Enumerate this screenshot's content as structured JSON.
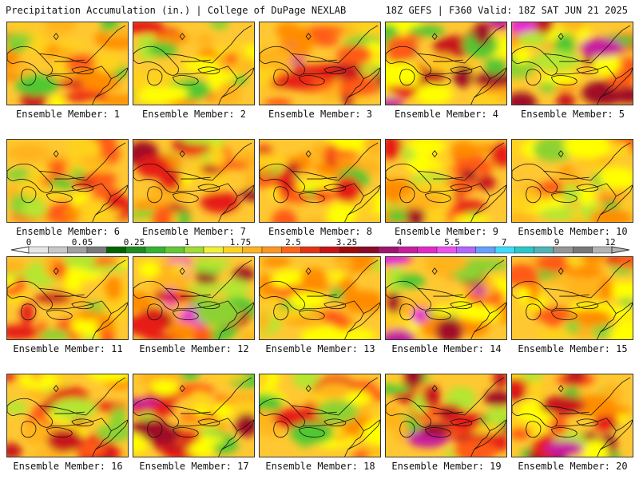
{
  "header": {
    "left_title": "Precipitation Accumulation (in.) | College of DuPage NEXLAB",
    "right_title": "18Z GEFS | F360 Valid: 18Z SAT JUN 21 2025"
  },
  "members": [
    {
      "label": "Ensemble Member: 1",
      "moisture": 0.45
    },
    {
      "label": "Ensemble Member: 2",
      "moisture": 0.4
    },
    {
      "label": "Ensemble Member: 3",
      "moisture": 0.6
    },
    {
      "label": "Ensemble Member: 4",
      "moisture": 0.65
    },
    {
      "label": "Ensemble Member: 5",
      "moisture": 0.7
    },
    {
      "label": "Ensemble Member: 6",
      "moisture": 0.4
    },
    {
      "label": "Ensemble Member: 7",
      "moisture": 0.55
    },
    {
      "label": "Ensemble Member: 8",
      "moisture": 0.45
    },
    {
      "label": "Ensemble Member: 9",
      "moisture": 0.55
    },
    {
      "label": "Ensemble Member: 10",
      "moisture": 0.4
    },
    {
      "label": "Ensemble Member: 11",
      "moisture": 0.45
    },
    {
      "label": "Ensemble Member: 12",
      "moisture": 0.75
    },
    {
      "label": "Ensemble Member: 13",
      "moisture": 0.35
    },
    {
      "label": "Ensemble Member: 14",
      "moisture": 0.75
    },
    {
      "label": "Ensemble Member: 15",
      "moisture": 0.4
    },
    {
      "label": "Ensemble Member: 16",
      "moisture": 0.45
    },
    {
      "label": "Ensemble Member: 17",
      "moisture": 0.6
    },
    {
      "label": "Ensemble Member: 18",
      "moisture": 0.4
    },
    {
      "label": "Ensemble Member: 19",
      "moisture": 0.6
    },
    {
      "label": "Ensemble Member: 20",
      "moisture": 0.6
    }
  ],
  "legend": {
    "ticks": [
      "0",
      "0.05",
      "0.25",
      "1",
      "1.75",
      "2.5",
      "3.25",
      "4",
      "5.5",
      "7",
      "9",
      "12"
    ],
    "colors": [
      "#e6e6e6",
      "#c8c8c8",
      "#a0a0a0",
      "#7a7a7a",
      "#006400",
      "#1e8c1e",
      "#32b432",
      "#64c832",
      "#a0dc32",
      "#f0f032",
      "#ffd21e",
      "#ffb41e",
      "#ff961e",
      "#ff6414",
      "#e63214",
      "#c81414",
      "#a00a0a",
      "#8c0a28",
      "#a0146e",
      "#c81ea0",
      "#e628c8",
      "#f050f0",
      "#b464ff",
      "#64a0ff",
      "#3cdcff",
      "#28c8c8",
      "#50b4b4",
      "#969696",
      "#787878",
      "#b4b4b4"
    ]
  }
}
